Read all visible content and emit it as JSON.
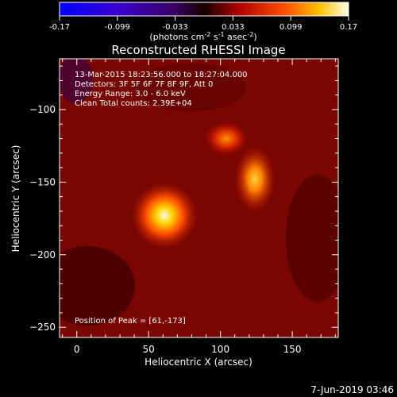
{
  "footer": {
    "date": "7-Jun-2019 03:46"
  },
  "colorbar": {
    "ticks": [
      "-0.17",
      "-0.099",
      "-0.033",
      "0.033",
      "0.099",
      "0.17"
    ],
    "unit_label": "(photons cm",
    "unit_sup1": "-2",
    "unit_mid": " s",
    "unit_sup2": "-1",
    "unit_mid2": " asec",
    "unit_sup3": "-2",
    "unit_end": ")"
  },
  "chart_data": {
    "type": "heatmap",
    "title": "Reconstructed RHESSI Image",
    "xlabel": "Heliocentric X (arcsec)",
    "ylabel": "Heliocentric Y (arcsec)",
    "xlim": [
      -12,
      182
    ],
    "ylim": [
      -257,
      -65
    ],
    "xticks": [
      0,
      50,
      100,
      150
    ],
    "yticks": [
      -100,
      -150,
      -200,
      -250
    ],
    "colorbar_range": [
      -0.17,
      0.17
    ],
    "info_lines": [
      "13-Mar-2015 18:23:56.000 to 18:27:04.000",
      "Detectors: 3F 5F 6F 7F 8F 9F, Att 0",
      "Energy Range: 3.0 - 6.0 keV",
      "Clean     Total counts: 2.39E+04"
    ],
    "peak_annotation": "Position of Peak = [61,-173]",
    "sources": [
      {
        "x": 61,
        "y": -173,
        "intensity": 0.17
      },
      {
        "x": 124,
        "y": -148,
        "intensity": 0.14
      },
      {
        "x": 104,
        "y": -120,
        "intensity": 0.11
      }
    ]
  }
}
